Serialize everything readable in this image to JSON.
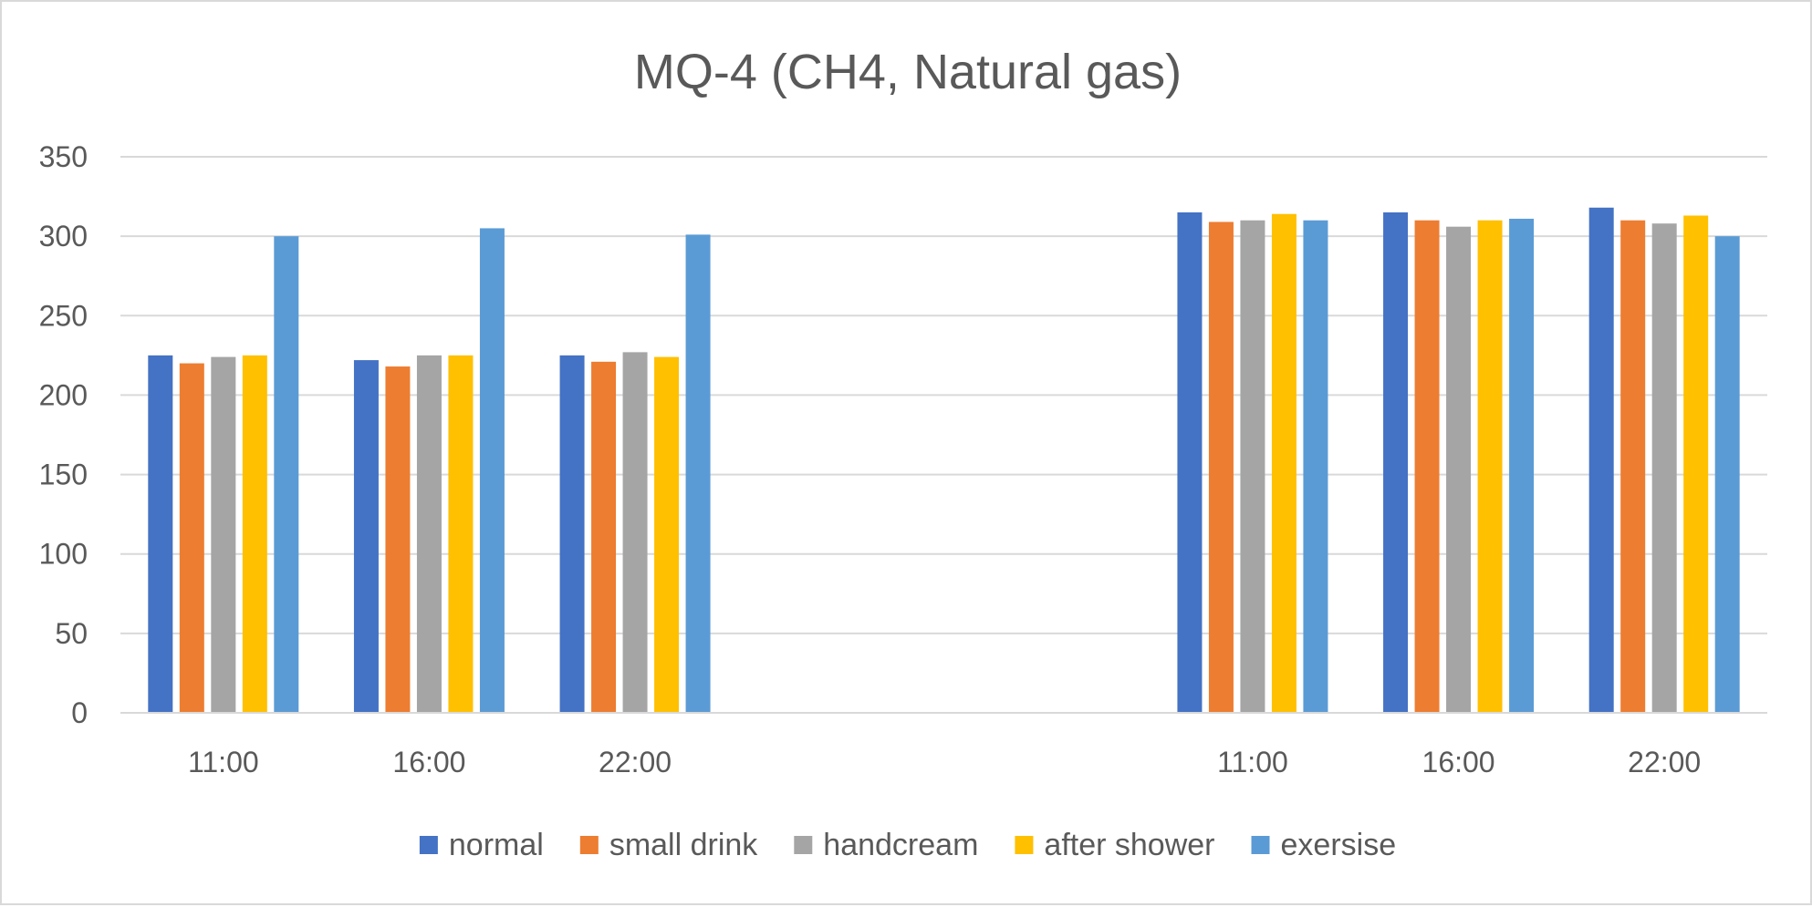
{
  "chart_data": {
    "type": "bar",
    "title": "MQ-4 (CH4, Natural gas)",
    "xlabel": "",
    "ylabel": "",
    "ylim": [
      0,
      350
    ],
    "yticks": [
      0,
      50,
      100,
      150,
      200,
      250,
      300,
      350
    ],
    "grid": true,
    "legend_position": "bottom",
    "categories": [
      "11:00",
      "16:00",
      "22:00",
      "",
      "",
      "11:00",
      "16:00",
      "22:00"
    ],
    "series": [
      {
        "name": "normal",
        "color": "#4472C4",
        "values": [
          225,
          222,
          225,
          null,
          null,
          315,
          315,
          318
        ]
      },
      {
        "name": "small drink",
        "color": "#ED7D31",
        "values": [
          220,
          218,
          221,
          null,
          null,
          309,
          310,
          310
        ]
      },
      {
        "name": "handcream",
        "color": "#A5A5A5",
        "values": [
          224,
          225,
          227,
          null,
          null,
          310,
          306,
          308
        ]
      },
      {
        "name": "after shower",
        "color": "#FFC000",
        "values": [
          225,
          225,
          224,
          null,
          null,
          314,
          310,
          313
        ]
      },
      {
        "name": "exersise",
        "color": "#5B9BD5",
        "values": [
          300,
          305,
          301,
          null,
          null,
          310,
          311,
          300
        ]
      }
    ]
  }
}
